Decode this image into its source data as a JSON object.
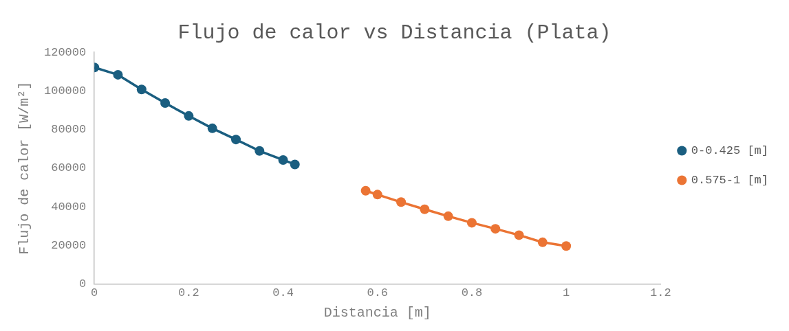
{
  "chart_data": {
    "type": "line",
    "title": "Flujo de calor vs Distancia (Plata)",
    "xlabel": "Distancia [m]",
    "ylabel": "Flujo de calor [W/m²]",
    "xlim": [
      0,
      1.2
    ],
    "xticks": [
      0,
      0.2,
      0.4,
      0.6,
      0.8,
      1,
      1.2
    ],
    "ylim": [
      0,
      120000
    ],
    "yticks": [
      0,
      20000,
      40000,
      60000,
      80000,
      100000,
      120000
    ],
    "grid": false,
    "legend": "right",
    "marker": "circle",
    "line_style": "solid",
    "series": [
      {
        "name": "0-0.425 [m]",
        "color": "#1a5e80",
        "x": [
          0,
          0.05,
          0.1,
          0.15,
          0.2,
          0.25,
          0.3,
          0.35,
          0.4,
          0.425
        ],
        "values": [
          112100,
          108300,
          100700,
          93700,
          87000,
          80600,
          74800,
          68900,
          64200,
          61900
        ]
      },
      {
        "name": "0.575-1 [m]",
        "color": "#eb7434",
        "x": [
          0.575,
          0.6,
          0.65,
          0.7,
          0.75,
          0.8,
          0.85,
          0.9,
          0.95,
          1
        ],
        "values": [
          48300,
          46300,
          42400,
          38700,
          35100,
          31700,
          28600,
          25300,
          21600,
          19700
        ]
      }
    ]
  }
}
